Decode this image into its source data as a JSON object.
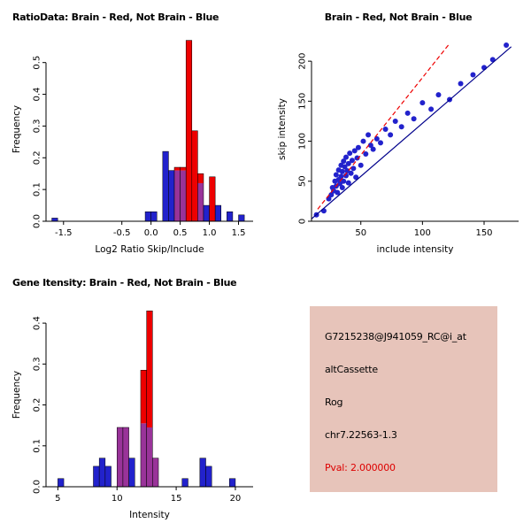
{
  "chart_data": [
    {
      "id": "ratio-histogram",
      "type": "bar",
      "title": "RatioData: Brain - Red, Not Brain - Blue",
      "title_align": "left",
      "xlabel": "Log2 Ratio Skip/Include",
      "ylabel": "Frequency",
      "xlim": [
        -1.8,
        1.75
      ],
      "ylim": [
        0,
        0.58
      ],
      "bin_width": 0.1,
      "xticks": [
        {
          "v": -1.5,
          "label": "-1.5"
        },
        {
          "v": -0.5,
          "label": "-0.5"
        },
        {
          "v": 0,
          "label": "0.0"
        },
        {
          "v": 0.5,
          "label": "0.5"
        },
        {
          "v": 1,
          "label": "1.0"
        },
        {
          "v": 1.5,
          "label": "1.5"
        }
      ],
      "yticks": [
        {
          "v": 0,
          "label": "0.0"
        },
        {
          "v": 0.1,
          "label": "0.1"
        },
        {
          "v": 0.2,
          "label": "0.2"
        },
        {
          "v": 0.3,
          "label": "0.3"
        },
        {
          "v": 0.4,
          "label": "0.4"
        },
        {
          "v": 0.5,
          "label": "0.5"
        }
      ],
      "colors": {
        "blue": "#2222cc",
        "red": "#ee0000",
        "overlap": "#993399"
      },
      "bins": [
        {
          "x": -1.7,
          "blue": 0.01
        },
        {
          "x": -0.1,
          "blue": 0.03
        },
        {
          "x": 0.0,
          "blue": 0.03
        },
        {
          "x": 0.2,
          "blue": 0.22
        },
        {
          "x": 0.3,
          "blue": 0.16
        },
        {
          "x": 0.4,
          "blue": 0.16,
          "red": 0.17
        },
        {
          "x": 0.5,
          "blue": 0.16,
          "red": 0.17
        },
        {
          "x": 0.6,
          "red": 0.57
        },
        {
          "x": 0.7,
          "red": 0.285
        },
        {
          "x": 0.8,
          "blue": 0.12,
          "red": 0.15
        },
        {
          "x": 0.9,
          "blue": 0.05
        },
        {
          "x": 1.0,
          "red": 0.14
        },
        {
          "x": 1.1,
          "blue": 0.05
        },
        {
          "x": 1.3,
          "blue": 0.03
        },
        {
          "x": 1.5,
          "blue": 0.02
        }
      ]
    },
    {
      "id": "intensity-scatter",
      "type": "scatter",
      "title": "Brain - Red, Not Brain - Blue",
      "title_align": "center",
      "xlabel": "include intensity",
      "ylabel": "skip intensity",
      "xlim": [
        10,
        178
      ],
      "ylim": [
        0,
        230
      ],
      "xticks": [
        {
          "v": 50,
          "label": "50"
        },
        {
          "v": 100,
          "label": "100"
        },
        {
          "v": 150,
          "label": "150"
        }
      ],
      "yticks": [
        {
          "v": 0,
          "label": "0"
        },
        {
          "v": 50,
          "label": "50"
        },
        {
          "v": 100,
          "label": "100"
        },
        {
          "v": 150,
          "label": "150"
        },
        {
          "v": 200,
          "label": "200"
        }
      ],
      "colors": {
        "point": "#2222cc"
      },
      "points": [
        [
          14,
          8
        ],
        [
          20,
          13
        ],
        [
          24,
          28
        ],
        [
          26,
          33
        ],
        [
          27,
          42
        ],
        [
          28,
          38
        ],
        [
          29,
          50
        ],
        [
          30,
          44
        ],
        [
          30,
          58
        ],
        [
          31,
          36
        ],
        [
          32,
          52
        ],
        [
          32,
          64
        ],
        [
          33,
          47
        ],
        [
          34,
          70
        ],
        [
          34,
          56
        ],
        [
          35,
          42
        ],
        [
          35,
          62
        ],
        [
          36,
          75
        ],
        [
          36,
          50
        ],
        [
          37,
          68
        ],
        [
          38,
          57
        ],
        [
          38,
          80
        ],
        [
          39,
          63
        ],
        [
          40,
          48
        ],
        [
          40,
          72
        ],
        [
          41,
          85
        ],
        [
          42,
          60
        ],
        [
          43,
          76
        ],
        [
          44,
          66
        ],
        [
          45,
          88
        ],
        [
          46,
          55
        ],
        [
          47,
          79
        ],
        [
          48,
          92
        ],
        [
          50,
          70
        ],
        [
          52,
          100
        ],
        [
          54,
          84
        ],
        [
          56,
          108
        ],
        [
          58,
          95
        ],
        [
          60,
          90
        ],
        [
          63,
          103
        ],
        [
          66,
          98
        ],
        [
          70,
          115
        ],
        [
          74,
          108
        ],
        [
          78,
          125
        ],
        [
          83,
          118
        ],
        [
          88,
          135
        ],
        [
          93,
          128
        ],
        [
          100,
          148
        ],
        [
          107,
          140
        ],
        [
          113,
          158
        ],
        [
          122,
          152
        ],
        [
          131,
          172
        ],
        [
          141,
          183
        ],
        [
          150,
          192
        ],
        [
          157,
          202
        ],
        [
          168,
          220
        ]
      ],
      "lines": [
        {
          "name": "fit-line-blue",
          "color": "#00008b",
          "dash": false,
          "x1": 10,
          "y1": 3,
          "x2": 172,
          "y2": 218
        },
        {
          "name": "reference-line-red",
          "color": "#ee0000",
          "dash": true,
          "x1": 15,
          "y1": 15,
          "x2": 122,
          "y2": 222
        }
      ]
    },
    {
      "id": "gene-intensity-histogram",
      "type": "bar",
      "title": "Gene Itensity: Brain - Red, Not Brain - Blue",
      "title_align": "left",
      "xlabel": "Intensity",
      "ylabel": "Frequency",
      "xlim": [
        4,
        21.5
      ],
      "ylim": [
        0,
        0.45
      ],
      "bin_width": 0.5,
      "xticks": [
        {
          "v": 5,
          "label": "5"
        },
        {
          "v": 10,
          "label": "10"
        },
        {
          "v": 15,
          "label": "15"
        },
        {
          "v": 20,
          "label": "20"
        }
      ],
      "yticks": [
        {
          "v": 0,
          "label": "0.0"
        },
        {
          "v": 0.1,
          "label": "0.1"
        },
        {
          "v": 0.2,
          "label": "0.2"
        },
        {
          "v": 0.3,
          "label": "0.3"
        },
        {
          "v": 0.4,
          "label": "0.4"
        }
      ],
      "colors": {
        "blue": "#2222cc",
        "red": "#ee0000",
        "overlap": "#993399"
      },
      "bins": [
        {
          "x": 5.0,
          "blue": 0.02
        },
        {
          "x": 8.0,
          "blue": 0.05
        },
        {
          "x": 8.5,
          "blue": 0.07
        },
        {
          "x": 9.0,
          "blue": 0.05
        },
        {
          "x": 10.0,
          "blue": 0.145,
          "red": 0.145
        },
        {
          "x": 10.5,
          "blue": 0.145,
          "red": 0.145
        },
        {
          "x": 11.0,
          "blue": 0.07
        },
        {
          "x": 12.0,
          "blue": 0.155,
          "red": 0.285
        },
        {
          "x": 12.5,
          "blue": 0.145,
          "red": 0.43
        },
        {
          "x": 13.0,
          "blue": 0.07,
          "red": 0.07
        },
        {
          "x": 15.5,
          "blue": 0.02
        },
        {
          "x": 17.0,
          "blue": 0.07
        },
        {
          "x": 17.5,
          "blue": 0.05
        },
        {
          "x": 19.5,
          "blue": 0.02
        }
      ]
    }
  ],
  "info_panel": {
    "bg_color": "#e7c4ba",
    "lines": [
      {
        "text": "G7215238@J941059_RC@i_at",
        "color": "#000000"
      },
      {
        "text": "altCassette",
        "color": "#000000"
      },
      {
        "text": "Rog",
        "color": "#000000"
      },
      {
        "text": "chr7.22563-1.3",
        "color": "#000000"
      },
      {
        "text": "Pval: 2.000000",
        "color": "#dd0000"
      }
    ]
  }
}
